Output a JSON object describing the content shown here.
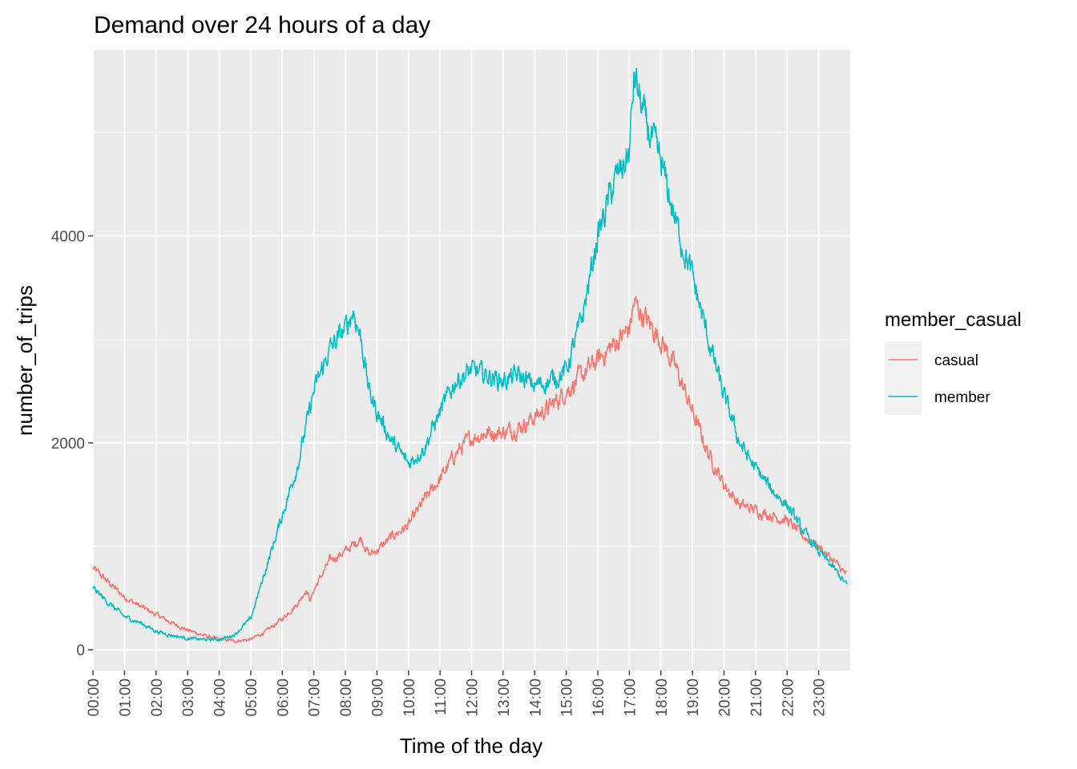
{
  "chart_data": {
    "type": "line",
    "title": "Demand over 24 hours of a day",
    "xlabel": "Time of the day",
    "ylabel": "number_of_trips",
    "x_ticks": [
      "00:00",
      "01:00",
      "02:00",
      "03:00",
      "04:00",
      "05:00",
      "06:00",
      "07:00",
      "08:00",
      "09:00",
      "10:00",
      "11:00",
      "12:00",
      "13:00",
      "14:00",
      "15:00",
      "16:00",
      "17:00",
      "18:00",
      "19:00",
      "20:00",
      "21:00",
      "22:00",
      "23:00"
    ],
    "y_ticks": [
      0,
      2000,
      4000
    ],
    "y_tick_labels": [
      "0",
      "2000",
      "4000"
    ],
    "xlim": [
      0,
      24
    ],
    "ylim": [
      -200,
      5800
    ],
    "grid": true,
    "legend": {
      "title": "member_casual",
      "position": "right"
    },
    "series": [
      {
        "name": "casual",
        "color": "#F8766D",
        "x": [
          0,
          0.5,
          1,
          1.5,
          2,
          2.5,
          3,
          3.5,
          4,
          4.5,
          5,
          5.5,
          6,
          6.5,
          6.75,
          6.9,
          7,
          7.5,
          8,
          8.5,
          8.75,
          9,
          9.5,
          10,
          10.5,
          11,
          11.5,
          12,
          12.5,
          13,
          13.5,
          14,
          14.5,
          15,
          15.5,
          16,
          16.5,
          17,
          17.15,
          17.5,
          18,
          18.5,
          19,
          19.5,
          20,
          20.5,
          21,
          21.5,
          22,
          22.5,
          23,
          23.5,
          23.9
        ],
        "y": [
          790,
          650,
          510,
          420,
          340,
          260,
          190,
          140,
          100,
          85,
          100,
          180,
          300,
          450,
          580,
          480,
          580,
          860,
          950,
          1080,
          920,
          960,
          1100,
          1200,
          1450,
          1650,
          1900,
          2050,
          2100,
          2100,
          2150,
          2250,
          2350,
          2500,
          2650,
          2800,
          2950,
          3100,
          3350,
          3200,
          3000,
          2700,
          2300,
          1900,
          1600,
          1400,
          1350,
          1300,
          1250,
          1100,
          1000,
          850,
          720
        ]
      },
      {
        "name": "member",
        "color": "#00BFC4",
        "x": [
          0,
          0.5,
          1,
          1.5,
          2,
          2.5,
          3,
          3.5,
          4,
          4.25,
          4.5,
          5,
          5.5,
          6,
          6.5,
          7,
          7.5,
          8,
          8.25,
          8.5,
          8.75,
          9,
          9.5,
          10,
          10.5,
          11,
          11.5,
          12,
          12.5,
          13,
          13.5,
          14,
          14.5,
          15,
          15.5,
          16,
          16.5,
          17,
          17.15,
          17.5,
          18,
          18.5,
          19,
          19.5,
          20,
          20.5,
          21,
          21.5,
          22,
          22.5,
          23,
          23.5,
          23.9
        ],
        "y": [
          600,
          450,
          320,
          260,
          180,
          140,
          110,
          100,
          100,
          120,
          150,
          300,
          800,
          1300,
          1800,
          2500,
          2900,
          3100,
          3280,
          3000,
          2500,
          2300,
          2000,
          1800,
          1950,
          2300,
          2600,
          2700,
          2650,
          2600,
          2650,
          2550,
          2600,
          2700,
          3200,
          4000,
          4500,
          4800,
          5550,
          5100,
          4700,
          4100,
          3600,
          3000,
          2450,
          2000,
          1750,
          1550,
          1400,
          1150,
          950,
          780,
          620
        ]
      }
    ]
  }
}
